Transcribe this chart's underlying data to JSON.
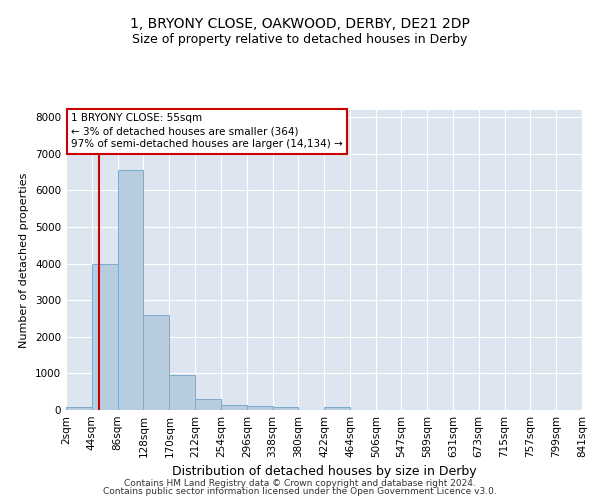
{
  "title": "1, BRYONY CLOSE, OAKWOOD, DERBY, DE21 2DP",
  "subtitle": "Size of property relative to detached houses in Derby",
  "xlabel": "Distribution of detached houses by size in Derby",
  "ylabel": "Number of detached properties",
  "bin_edges": [
    2,
    44,
    86,
    128,
    170,
    212,
    254,
    296,
    338,
    380,
    422,
    464,
    506,
    547,
    589,
    631,
    673,
    715,
    757,
    799,
    841
  ],
  "bar_heights": [
    75,
    4000,
    6550,
    2600,
    950,
    310,
    140,
    115,
    75,
    0,
    75,
    0,
    0,
    0,
    0,
    0,
    0,
    0,
    0,
    0
  ],
  "bar_color": "#b8ccdf",
  "bar_edge_color": "#7aabcc",
  "vline_x": 55,
  "vline_color": "#cc0000",
  "annotation_text": "1 BRYONY CLOSE: 55sqm\n← 3% of detached houses are smaller (364)\n97% of semi-detached houses are larger (14,134) →",
  "annotation_box_color": "white",
  "annotation_box_edge_color": "#cc0000",
  "ylim": [
    0,
    8200
  ],
  "yticks": [
    0,
    1000,
    2000,
    3000,
    4000,
    5000,
    6000,
    7000,
    8000
  ],
  "bg_color": "#dde6f0",
  "footer_line1": "Contains HM Land Registry data © Crown copyright and database right 2024.",
  "footer_line2": "Contains public sector information licensed under the Open Government Licence v3.0.",
  "title_fontsize": 10,
  "subtitle_fontsize": 9,
  "xlabel_fontsize": 9,
  "ylabel_fontsize": 8,
  "tick_fontsize": 7.5,
  "annotation_fontsize": 7.5,
  "footer_fontsize": 6.5
}
